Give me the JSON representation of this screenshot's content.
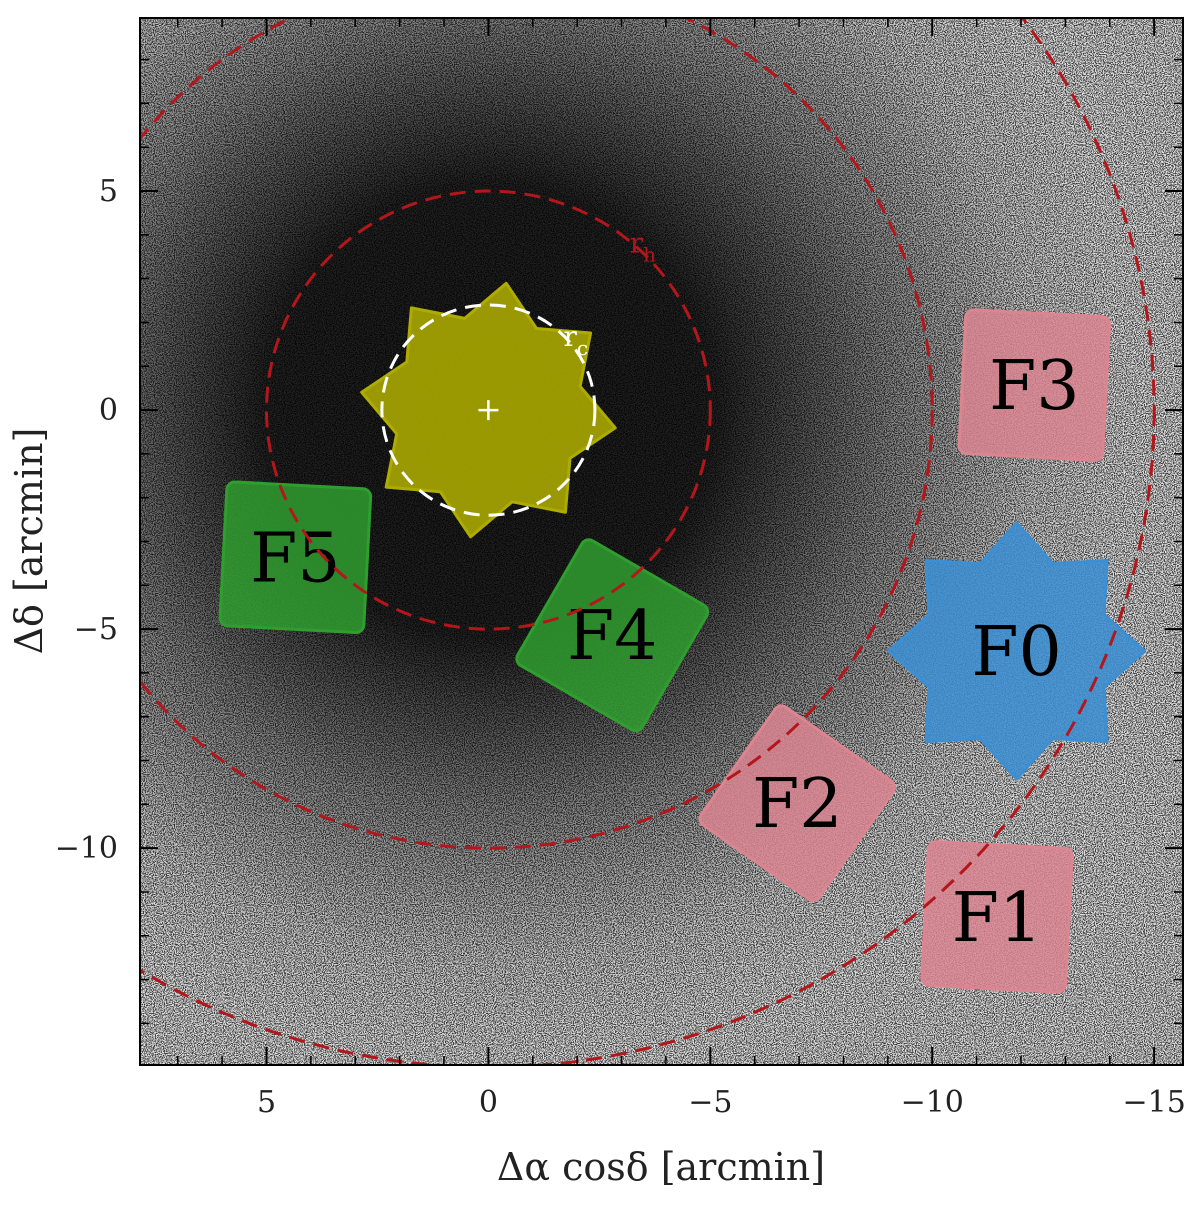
{
  "chart_data": {
    "type": "sky-map",
    "xlabel": "Δα cosδ [arcmin]",
    "ylabel": "Δδ [arcmin]",
    "xlim": [
      7.85,
      -15.65
    ],
    "ylim": [
      -14.95,
      8.95
    ],
    "xticks": [
      5,
      0,
      {
        "value": -5,
        "label": "−5"
      },
      {
        "value": -10,
        "label": "−10"
      },
      {
        "value": -15,
        "label": "−15"
      }
    ],
    "yticks": [
      5,
      0,
      {
        "value": -5,
        "label": "−5"
      },
      {
        "value": -10,
        "label": "−10"
      }
    ],
    "circles": [
      {
        "name": "r",
        "subscript": "c",
        "radius": 2.4,
        "color": "#ffffff"
      },
      {
        "name": "r",
        "subscript": "h",
        "radius": 5,
        "color": "#b3161b"
      },
      {
        "radius": 10,
        "color": "#b3161b"
      },
      {
        "radius": 15,
        "color": "#b3161b"
      }
    ],
    "fields": [
      {
        "x": 0,
        "y": 0,
        "marker": "star",
        "color": "#b3b100"
      },
      {
        "label": "F0",
        "x": -11.9,
        "y": -5.5,
        "marker": "star",
        "color": "#3d93d8"
      },
      {
        "label": "F1",
        "x": -11.46,
        "y": -11.57,
        "marker": "square",
        "color": "#da8590"
      },
      {
        "label": "F2",
        "x": -6.96,
        "y": -8.97,
        "marker": "square",
        "color": "#da8590"
      },
      {
        "label": "F3",
        "x": -12.3,
        "y": 0.57,
        "marker": "square",
        "color": "#da8590"
      },
      {
        "label": "F4",
        "x": -2.79,
        "y": -5.14,
        "marker": "square",
        "color": "#2f9e2f"
      },
      {
        "label": "F5",
        "x": 4.35,
        "y": -3.36,
        "marker": "square",
        "color": "#2f9e2f"
      }
    ]
  }
}
